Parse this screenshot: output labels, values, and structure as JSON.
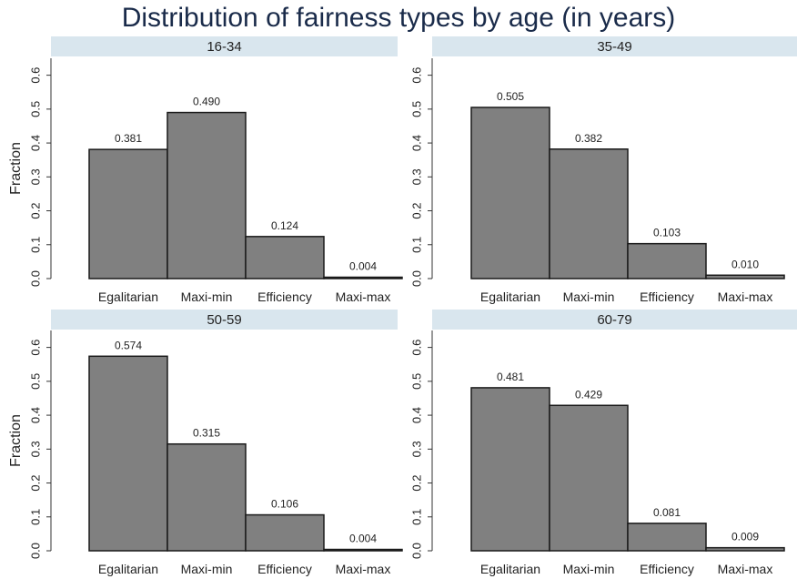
{
  "chart_data": {
    "type": "bar",
    "title": "Distribution of fairness types by age (in years)",
    "ylabel": "Fraction",
    "ylim": [
      0,
      0.65
    ],
    "yticks": [
      "0.0",
      "0.1",
      "0.2",
      "0.3",
      "0.4",
      "0.5",
      "0.6"
    ],
    "categories": [
      "Egalitarian",
      "Maxi-min",
      "Efficiency",
      "Maxi-max"
    ],
    "panels": [
      {
        "name": "16-34",
        "values": [
          0.381,
          0.49,
          0.124,
          0.004
        ],
        "labels": [
          "0.381",
          "0.490",
          "0.124",
          "0.004"
        ]
      },
      {
        "name": "35-49",
        "values": [
          0.505,
          0.382,
          0.103,
          0.01
        ],
        "labels": [
          "0.505",
          "0.382",
          "0.103",
          "0.010"
        ]
      },
      {
        "name": "50-59",
        "values": [
          0.574,
          0.315,
          0.106,
          0.004
        ],
        "labels": [
          "0.574",
          "0.315",
          "0.106",
          "0.004"
        ]
      },
      {
        "name": "60-79",
        "values": [
          0.481,
          0.429,
          0.081,
          0.009
        ],
        "labels": [
          "0.481",
          "0.429",
          "0.081",
          "0.009"
        ]
      }
    ],
    "colors": {
      "bar": "#808080",
      "bar_edge": "#1a1a1a",
      "panel_header": "#d9e6ee",
      "axis": "#333333"
    },
    "grid": false
  }
}
